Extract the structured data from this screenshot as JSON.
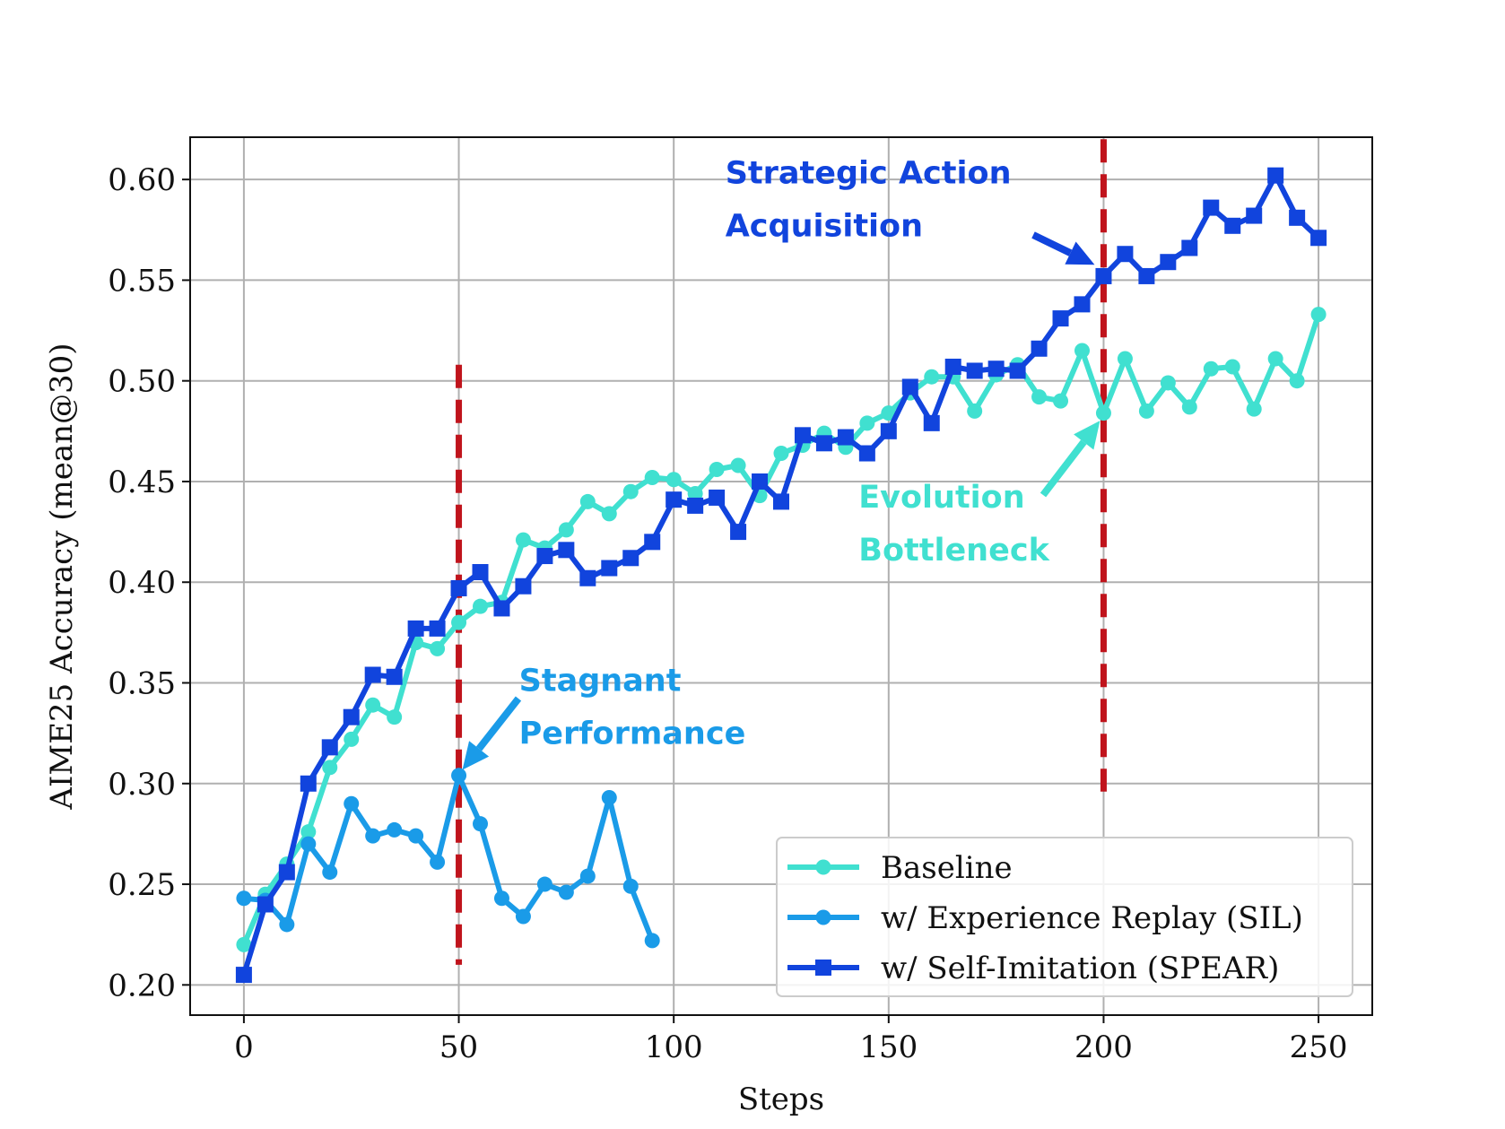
{
  "chart_data": {
    "type": "line",
    "xlabel": "Steps",
    "ylabel": "AIME25 Accuracy (mean@30)",
    "xlim": [
      -12.5,
      262.5
    ],
    "ylim": [
      0.185,
      0.621
    ],
    "xticks": [
      0,
      50,
      100,
      150,
      200,
      250
    ],
    "yticks": [
      0.2,
      0.25,
      0.3,
      0.35,
      0.4,
      0.45,
      0.5,
      0.55,
      0.6
    ],
    "xtick_labels": [
      "0",
      "50",
      "100",
      "150",
      "200",
      "250"
    ],
    "ytick_labels": [
      "0.20",
      "0.25",
      "0.30",
      "0.35",
      "0.40",
      "0.45",
      "0.50",
      "0.55",
      "0.60"
    ],
    "grid": true,
    "legend_position": "bottom-right",
    "vlines": [
      {
        "x": 50,
        "ymin": 0.21,
        "ymax": 0.508,
        "color": "#c0141c"
      },
      {
        "x": 200,
        "ymin": 0.296,
        "ymax": 0.62,
        "color": "#c0141c"
      }
    ],
    "series": [
      {
        "name": "Baseline",
        "color": "#40e0d0",
        "marker": "circle",
        "x": [
          0,
          5,
          10,
          15,
          20,
          25,
          30,
          35,
          40,
          45,
          50,
          55,
          60,
          65,
          70,
          75,
          80,
          85,
          90,
          95,
          100,
          105,
          110,
          115,
          120,
          125,
          130,
          135,
          140,
          145,
          150,
          155,
          160,
          165,
          170,
          175,
          180,
          185,
          190,
          195,
          200,
          205,
          210,
          215,
          220,
          225,
          230,
          235,
          240,
          245,
          250
        ],
        "y": [
          0.22,
          0.245,
          0.26,
          0.276,
          0.308,
          0.322,
          0.339,
          0.333,
          0.37,
          0.367,
          0.38,
          0.388,
          0.39,
          0.421,
          0.417,
          0.426,
          0.44,
          0.434,
          0.445,
          0.452,
          0.451,
          0.444,
          0.456,
          0.458,
          0.443,
          0.464,
          0.468,
          0.474,
          0.467,
          0.479,
          0.484,
          0.494,
          0.502,
          0.502,
          0.485,
          0.503,
          0.508,
          0.492,
          0.49,
          0.515,
          0.484,
          0.511,
          0.485,
          0.499,
          0.487,
          0.506,
          0.507,
          0.486,
          0.511,
          0.5,
          0.533
        ]
      },
      {
        "name": "w/ Experience Replay (SIL)",
        "color": "#1a9be8",
        "marker": "circle",
        "x": [
          0,
          5,
          10,
          15,
          20,
          25,
          30,
          35,
          40,
          45,
          50,
          55,
          60,
          65,
          70,
          75,
          80,
          85,
          90,
          95
        ],
        "y": [
          0.243,
          0.242,
          0.23,
          0.27,
          0.256,
          0.29,
          0.274,
          0.277,
          0.274,
          0.261,
          0.304,
          0.28,
          0.243,
          0.234,
          0.25,
          0.246,
          0.254,
          0.293,
          0.249,
          0.222
        ]
      },
      {
        "name": "w/ Self-Imitation (SPEAR)",
        "color": "#1144dd",
        "marker": "square",
        "x": [
          0,
          5,
          10,
          15,
          20,
          25,
          30,
          35,
          40,
          45,
          50,
          55,
          60,
          65,
          70,
          75,
          80,
          85,
          90,
          95,
          100,
          105,
          110,
          115,
          120,
          125,
          130,
          135,
          140,
          145,
          150,
          155,
          160,
          165,
          170,
          175,
          180,
          185,
          190,
          195,
          200,
          205,
          210,
          215,
          220,
          225,
          230,
          235,
          240,
          245,
          250
        ],
        "y": [
          0.205,
          0.24,
          0.256,
          0.3,
          0.318,
          0.333,
          0.354,
          0.353,
          0.377,
          0.377,
          0.397,
          0.405,
          0.387,
          0.398,
          0.413,
          0.416,
          0.402,
          0.407,
          0.412,
          0.42,
          0.441,
          0.438,
          0.442,
          0.425,
          0.45,
          0.44,
          0.473,
          0.469,
          0.472,
          0.464,
          0.475,
          0.497,
          0.479,
          0.507,
          0.505,
          0.506,
          0.505,
          0.516,
          0.531,
          0.538,
          0.552,
          0.563,
          0.552,
          0.559,
          0.566,
          0.586,
          0.577,
          0.582,
          0.602,
          0.581,
          0.571
        ]
      }
    ],
    "annotations": [
      {
        "lines": [
          "Strategic Action",
          "Acquisition"
        ],
        "color": "#1144dd",
        "text_x": 112,
        "text_y": 0.598,
        "target_x": 200,
        "target_y": 0.555
      },
      {
        "lines": [
          "Evolution",
          "Bottleneck"
        ],
        "color": "#40e0d0",
        "text_x": 143,
        "text_y": 0.437,
        "target_x": 200,
        "target_y": 0.482
      },
      {
        "lines": [
          "Stagnant",
          "Performance"
        ],
        "color": "#1a9be8",
        "text_x": 64,
        "text_y": 0.346,
        "target_x": 50,
        "target_y": 0.305
      }
    ]
  }
}
